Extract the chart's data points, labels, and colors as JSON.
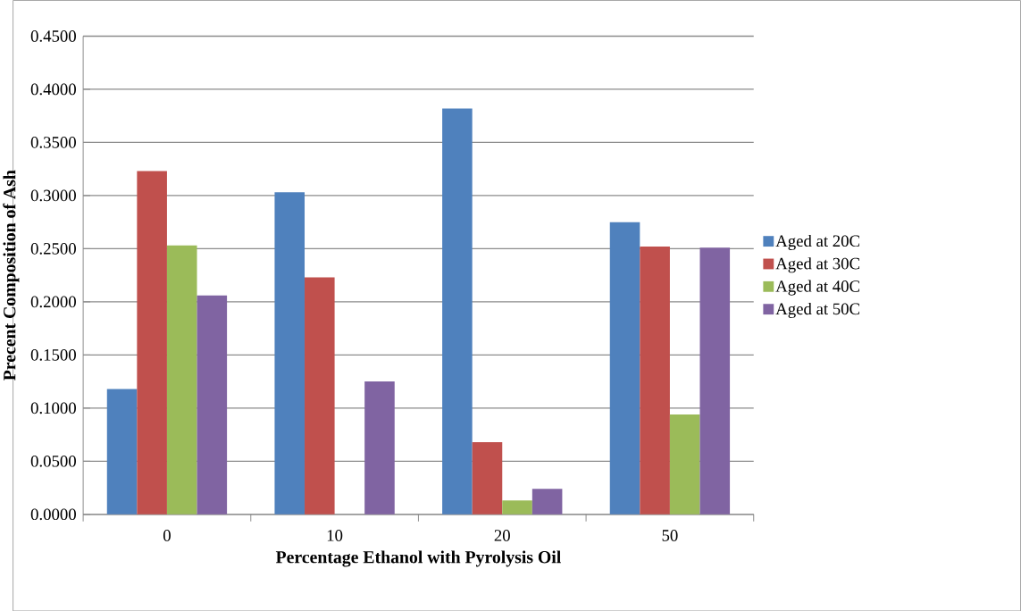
{
  "chart_data": {
    "type": "bar",
    "xlabel": "Percentage Ethanol with Pyrolysis Oil",
    "ylabel": "Precent Composition of Ash",
    "categories": [
      "0",
      "10",
      "20",
      "50"
    ],
    "series": [
      {
        "name": "Aged at 20C",
        "color": "#4f81bd",
        "values": [
          0.118,
          0.303,
          0.382,
          0.275
        ]
      },
      {
        "name": "Aged at 30C",
        "color": "#c0504d",
        "values": [
          0.323,
          0.223,
          0.068,
          0.252
        ]
      },
      {
        "name": "Aged at 40C",
        "color": "#9bbb59",
        "values": [
          0.253,
          0,
          0.013,
          0.094
        ]
      },
      {
        "name": "Aged at 50C",
        "color": "#8064a2",
        "values": [
          0.206,
          0.125,
          0.024,
          0.251
        ]
      }
    ],
    "ylim": [
      0,
      0.45
    ],
    "yticks": [
      {
        "value": 0,
        "label": "0.0000"
      },
      {
        "value": 0.05,
        "label": "0.0500"
      },
      {
        "value": 0.1,
        "label": "0.1000"
      },
      {
        "value": 0.15,
        "label": "0.1500"
      },
      {
        "value": 0.2,
        "label": "0.2000"
      },
      {
        "value": 0.25,
        "label": "0.2500"
      },
      {
        "value": 0.3,
        "label": "0.3000"
      },
      {
        "value": 0.35,
        "label": "0.3500"
      },
      {
        "value": 0.4,
        "label": "0.4000"
      },
      {
        "value": 0.45,
        "label": "0.4500"
      }
    ],
    "grid": "y",
    "legend": "right"
  }
}
